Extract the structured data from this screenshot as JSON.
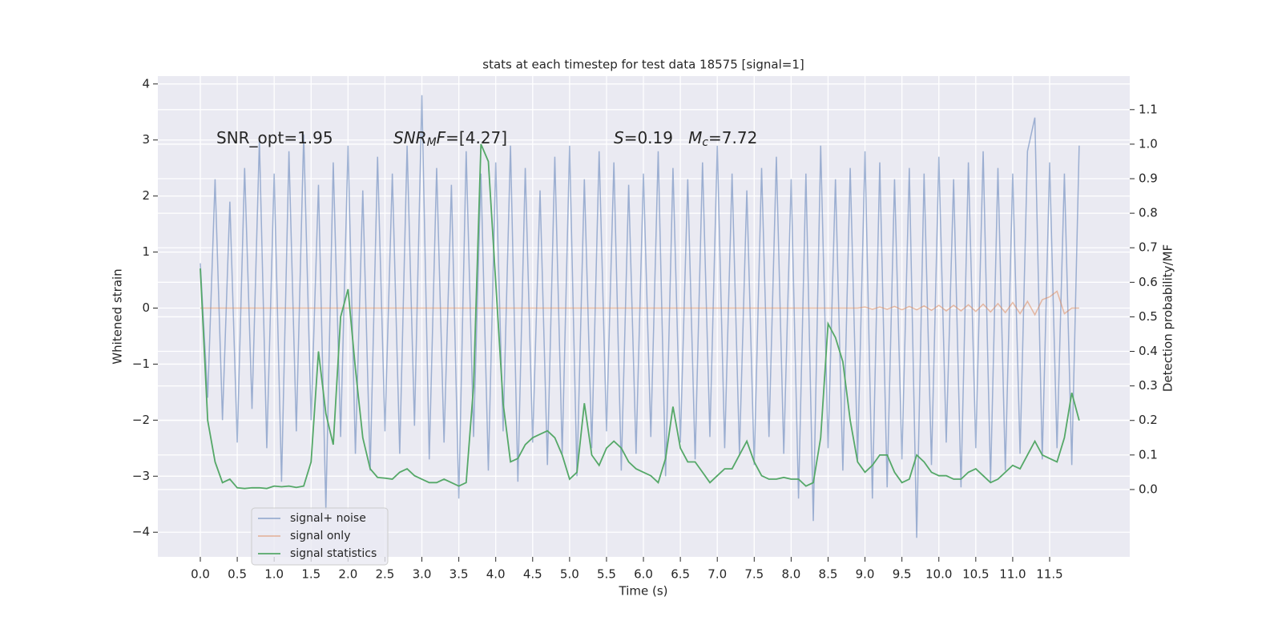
{
  "chart_data": {
    "type": "line",
    "title": "stats at each timestep for test data 18575 [signal=1]",
    "x_label": "Time (s)",
    "y_label": "Whitened strain",
    "y2_label": "Detection probability/MF",
    "grid": true,
    "legend": "lower left",
    "annotations": [
      [
        {
          "text": "SNR_opt=1.95"
        }
      ],
      [
        {
          "text": "SNR",
          "italic": true
        },
        {
          "text": "M",
          "italic": true,
          "sub": true
        },
        {
          "text": "F",
          "italic": true
        },
        {
          "text": "=[4.27]"
        }
      ],
      [
        {
          "text": "S",
          "italic": true
        },
        {
          "text": "=0.19   "
        },
        {
          "text": "M",
          "italic": true
        },
        {
          "text": "c",
          "italic": true,
          "sub": true
        },
        {
          "text": "=7.72"
        }
      ]
    ],
    "xlim": [
      -0.575,
      12.585
    ],
    "ylim": [
      -4.44,
      4.14
    ],
    "y2lim": [
      -0.195,
      1.197
    ],
    "xticks": [
      {
        "value": 0,
        "label": "0.0"
      },
      {
        "value": 0.5,
        "label": "0.5"
      },
      {
        "value": 1,
        "label": "1.0"
      },
      {
        "value": 1.5,
        "label": "1.5"
      },
      {
        "value": 2,
        "label": "2.0"
      },
      {
        "value": 2.5,
        "label": "2.5"
      },
      {
        "value": 3,
        "label": "3.0"
      },
      {
        "value": 3.5,
        "label": "3.5"
      },
      {
        "value": 4,
        "label": "4.0"
      },
      {
        "value": 4.5,
        "label": "4.5"
      },
      {
        "value": 5,
        "label": "5.0"
      },
      {
        "value": 5.5,
        "label": "5.5"
      },
      {
        "value": 6,
        "label": "6.0"
      },
      {
        "value": 6.5,
        "label": "6.5"
      },
      {
        "value": 7,
        "label": "7.0"
      },
      {
        "value": 7.5,
        "label": "7.5"
      },
      {
        "value": 8,
        "label": "8.0"
      },
      {
        "value": 8.5,
        "label": "8.5"
      },
      {
        "value": 9,
        "label": "9.0"
      },
      {
        "value": 9.5,
        "label": "9.5"
      },
      {
        "value": 10,
        "label": "10.0"
      },
      {
        "value": 10.5,
        "label": "10.5"
      },
      {
        "value": 11,
        "label": "11.0"
      },
      {
        "value": 11.5,
        "label": "11.5"
      }
    ],
    "yticks": [
      {
        "value": -4,
        "label": "−4"
      },
      {
        "value": -3,
        "label": "−3"
      },
      {
        "value": -2,
        "label": "−2"
      },
      {
        "value": -1,
        "label": "−1"
      },
      0,
      1,
      2,
      3,
      4
    ],
    "y2ticks": [
      {
        "value": 0,
        "label": "0.0"
      },
      {
        "value": 0.1,
        "label": "0.1"
      },
      {
        "value": 0.2,
        "label": "0.2"
      },
      {
        "value": 0.3,
        "label": "0.3"
      },
      {
        "value": 0.4,
        "label": "0.4"
      },
      {
        "value": 0.5,
        "label": "0.5"
      },
      {
        "value": 0.6,
        "label": "0.6"
      },
      {
        "value": 0.7,
        "label": "0.7"
      },
      {
        "value": 0.8,
        "label": "0.8"
      },
      {
        "value": 0.9,
        "label": "0.9"
      },
      {
        "value": 1,
        "label": "1.0"
      },
      {
        "value": 1.1,
        "label": "1.1"
      }
    ],
    "x": [
      0.0,
      0.1,
      0.2,
      0.3,
      0.4,
      0.5,
      0.6,
      0.7,
      0.8,
      0.9,
      1.0,
      1.1,
      1.2,
      1.3,
      1.4,
      1.5,
      1.6,
      1.7,
      1.8,
      1.9,
      2.0,
      2.1,
      2.2,
      2.3,
      2.4,
      2.5,
      2.6,
      2.7,
      2.8,
      2.9,
      3.0,
      3.1,
      3.2,
      3.3,
      3.4,
      3.5,
      3.6,
      3.7,
      3.8,
      3.9,
      4.0,
      4.1,
      4.2,
      4.3,
      4.4,
      4.5,
      4.6,
      4.7,
      4.8,
      4.9,
      5.0,
      5.1,
      5.2,
      5.3,
      5.4,
      5.5,
      5.6,
      5.7,
      5.8,
      5.9,
      6.0,
      6.1,
      6.2,
      6.3,
      6.4,
      6.5,
      6.6,
      6.7,
      6.8,
      6.9,
      7.0,
      7.1,
      7.2,
      7.3,
      7.4,
      7.5,
      7.6,
      7.7,
      7.8,
      7.9,
      8.0,
      8.1,
      8.2,
      8.3,
      8.4,
      8.5,
      8.6,
      8.7,
      8.8,
      8.9,
      9.0,
      9.1,
      9.2,
      9.3,
      9.4,
      9.5,
      9.6,
      9.7,
      9.8,
      9.9,
      10.0,
      10.1,
      10.2,
      10.3,
      10.4,
      10.5,
      10.6,
      10.7,
      10.8,
      10.9,
      11.0,
      11.1,
      11.2,
      11.3,
      11.4,
      11.5,
      11.6,
      11.7,
      11.8,
      11.9
    ],
    "series": [
      {
        "name": "signal+ noise",
        "color": "#4c72b0",
        "values": [
          0.8,
          -1.6,
          2.3,
          -2.0,
          1.9,
          -2.4,
          2.5,
          -1.8,
          3.0,
          -2.5,
          2.4,
          -3.1,
          2.8,
          -2.2,
          3.1,
          -2.0,
          2.2,
          -3.6,
          2.6,
          -2.3,
          2.9,
          -2.6,
          2.1,
          -2.9,
          2.7,
          -2.2,
          2.4,
          -2.6,
          2.9,
          -2.1,
          3.8,
          -2.7,
          2.5,
          -2.4,
          2.2,
          -3.4,
          2.8,
          -2.3,
          2.4,
          -2.9,
          2.6,
          -2.2,
          2.9,
          -3.1,
          2.5,
          -2.4,
          2.1,
          -2.8,
          2.7,
          -2.6,
          2.9,
          -3.0,
          2.3,
          -2.5,
          2.8,
          -2.2,
          2.6,
          -2.9,
          2.2,
          -2.6,
          2.4,
          -2.3,
          2.8,
          -3.0,
          2.5,
          -2.4,
          2.3,
          -2.7,
          2.6,
          -2.3,
          2.9,
          -2.5,
          2.4,
          -2.6,
          2.1,
          -2.8,
          2.5,
          -2.3,
          2.7,
          -2.6,
          2.3,
          -3.4,
          2.4,
          -3.8,
          2.9,
          -2.5,
          2.3,
          -2.9,
          2.5,
          -2.7,
          2.8,
          -3.4,
          2.6,
          -3.2,
          2.3,
          -2.7,
          2.5,
          -4.1,
          2.4,
          -2.8,
          2.7,
          -2.4,
          2.3,
          -3.2,
          2.6,
          -2.5,
          2.8,
          -3.1,
          2.5,
          -2.9,
          2.4,
          -2.6,
          2.8,
          3.4,
          -2.7,
          2.6,
          -2.5,
          2.4,
          -2.8,
          2.9
        ]
      },
      {
        "name": "signal only",
        "color": "#dd8452",
        "values": [
          0,
          0,
          0,
          0,
          0,
          0,
          0,
          0,
          0,
          0,
          0,
          0,
          0,
          0,
          0,
          0,
          0,
          0,
          0,
          0,
          0,
          0,
          0,
          0,
          0,
          0,
          0,
          0,
          0,
          0,
          0,
          0,
          0,
          0,
          0,
          0,
          0,
          0,
          0,
          0,
          0,
          0,
          0,
          0,
          0,
          0,
          0,
          0,
          0,
          0,
          0,
          0,
          0,
          0,
          0,
          0,
          0,
          0,
          0,
          0,
          0,
          0,
          0,
          0,
          0,
          0,
          0,
          0,
          0,
          0,
          0,
          0,
          0,
          0,
          0,
          0,
          0,
          0,
          0,
          0,
          0,
          0,
          0,
          0,
          0,
          0,
          0,
          0,
          0,
          0,
          0.02,
          -0.02,
          0.02,
          -0.02,
          0.03,
          -0.03,
          0.03,
          -0.03,
          0.04,
          -0.04,
          0.05,
          -0.05,
          0.05,
          -0.05,
          0.06,
          -0.06,
          0.07,
          -0.07,
          0.08,
          -0.08,
          0.1,
          -0.1,
          0.12,
          -0.12,
          0.15,
          0.2,
          0.3,
          -0.1,
          0,
          0
        ]
      },
      {
        "name": "signal statistics",
        "color": "#55a868",
        "axis": "y2",
        "values": [
          0.64,
          0.2,
          0.08,
          0.02,
          0.03,
          0.005,
          0.003,
          0.005,
          0.005,
          0.003,
          0.01,
          0.008,
          0.01,
          0.006,
          0.01,
          0.08,
          0.4,
          0.22,
          0.13,
          0.5,
          0.58,
          0.35,
          0.15,
          0.06,
          0.035,
          0.033,
          0.03,
          0.05,
          0.06,
          0.04,
          0.03,
          0.02,
          0.02,
          0.03,
          0.02,
          0.01,
          0.02,
          0.3,
          1.0,
          0.95,
          0.6,
          0.25,
          0.08,
          0.09,
          0.13,
          0.15,
          0.16,
          0.17,
          0.15,
          0.1,
          0.03,
          0.05,
          0.25,
          0.1,
          0.07,
          0.12,
          0.14,
          0.12,
          0.08,
          0.06,
          0.05,
          0.04,
          0.02,
          0.09,
          0.24,
          0.12,
          0.08,
          0.08,
          0.05,
          0.02,
          0.04,
          0.06,
          0.06,
          0.1,
          0.14,
          0.08,
          0.04,
          0.03,
          0.03,
          0.035,
          0.03,
          0.03,
          0.01,
          0.02,
          0.15,
          0.48,
          0.44,
          0.37,
          0.2,
          0.08,
          0.05,
          0.07,
          0.1,
          0.1,
          0.05,
          0.02,
          0.03,
          0.1,
          0.08,
          0.05,
          0.04,
          0.04,
          0.03,
          0.03,
          0.05,
          0.06,
          0.04,
          0.02,
          0.03,
          0.05,
          0.07,
          0.06,
          0.1,
          0.14,
          0.1,
          0.09,
          0.08,
          0.15,
          0.28,
          0.2
        ]
      }
    ]
  }
}
